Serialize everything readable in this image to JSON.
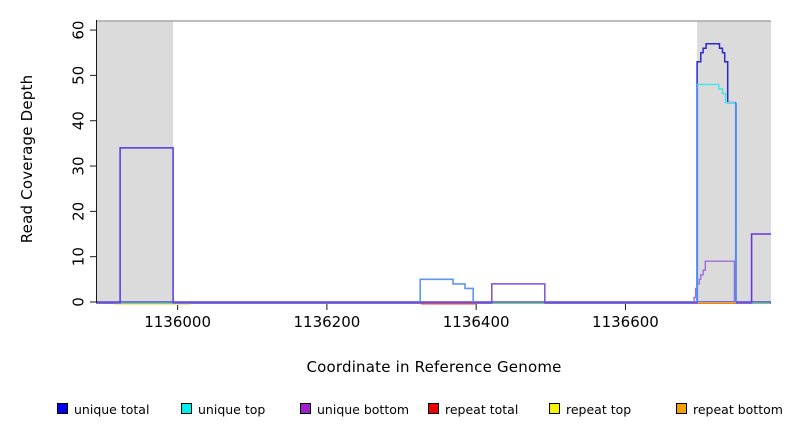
{
  "chart_data": {
    "type": "line",
    "chart_kind": "step-coverage-profile",
    "title": "",
    "xlabel": "Coordinate in Reference Genome",
    "ylabel": "Read Coverage Depth",
    "xlim": [
      1135892,
      1136795
    ],
    "ylim": [
      0,
      62
    ],
    "x_ticks": [
      1136000,
      1136200,
      1136400,
      1136600
    ],
    "y_ticks": [
      0,
      10,
      20,
      30,
      40,
      50,
      60
    ],
    "grid": false,
    "legend_position": "bottom",
    "shaded_regions": [
      {
        "x0": 1135892,
        "x1": 1135994,
        "color": "#dbdbdb"
      },
      {
        "x0": 1136696,
        "x1": 1136795,
        "color": "#dbdbdb"
      }
    ],
    "top_boundary_line": {
      "y": 62,
      "color": "#a8a8a8"
    },
    "axis_color": "#1a1a1a",
    "legend": [
      {
        "label": "unique total",
        "color": "#0000ee"
      },
      {
        "label": "unique top",
        "color": "#00eeee"
      },
      {
        "label": "unique bottom",
        "color": "#a020d0"
      },
      {
        "label": "repeat total",
        "color": "#ee0000"
      },
      {
        "label": "repeat top",
        "color": "#f5f500"
      },
      {
        "label": "repeat bottom",
        "color": "#f5a000"
      }
    ],
    "series": [
      {
        "name": "unique total",
        "color": "#0000ee",
        "step_points": [
          [
            1135892,
            0
          ],
          [
            1135923,
            34
          ],
          [
            1135994,
            0
          ],
          [
            1136325,
            5
          ],
          [
            1136369,
            4
          ],
          [
            1136385,
            3
          ],
          [
            1136396,
            0
          ],
          [
            1136421,
            4
          ],
          [
            1136492,
            0
          ],
          [
            1136696,
            53
          ],
          [
            1136701,
            55
          ],
          [
            1136704,
            56
          ],
          [
            1136708,
            57
          ],
          [
            1136726,
            56
          ],
          [
            1136730,
            55
          ],
          [
            1136733,
            53
          ],
          [
            1136737,
            44
          ],
          [
            1136748,
            0
          ],
          [
            1136769,
            15
          ],
          [
            1136795,
            15
          ]
        ]
      },
      {
        "name": "unique top",
        "color": "#00eeee",
        "step_points": [
          [
            1135892,
            0
          ],
          [
            1136325,
            5
          ],
          [
            1136369,
            4
          ],
          [
            1136385,
            3
          ],
          [
            1136396,
            0
          ],
          [
            1136696,
            48
          ],
          [
            1136725,
            47
          ],
          [
            1136730,
            46
          ],
          [
            1136734,
            44
          ],
          [
            1136748,
            0
          ],
          [
            1136795,
            0
          ]
        ]
      },
      {
        "name": "unique bottom",
        "color": "#a020d0",
        "step_points": [
          [
            1135892,
            0
          ],
          [
            1135923,
            34
          ],
          [
            1135994,
            0
          ],
          [
            1136421,
            4
          ],
          [
            1136492,
            0
          ],
          [
            1136692,
            1
          ],
          [
            1136694,
            3
          ],
          [
            1136696,
            4
          ],
          [
            1136699,
            5
          ],
          [
            1136701,
            6
          ],
          [
            1136704,
            7
          ],
          [
            1136707,
            9
          ],
          [
            1136746,
            0
          ],
          [
            1136769,
            15
          ],
          [
            1136795,
            15
          ]
        ]
      },
      {
        "name": "repeat total",
        "color": "#ee0000",
        "step_points": [
          [
            1135892,
            0
          ],
          [
            1136795,
            0
          ]
        ]
      },
      {
        "name": "repeat top",
        "color": "#f5f500",
        "step_points": [
          [
            1135892,
            0
          ],
          [
            1136795,
            0
          ]
        ]
      },
      {
        "name": "repeat bottom",
        "color": "#f5a000",
        "step_points": [
          [
            1135892,
            0
          ],
          [
            1136795,
            0
          ]
        ]
      }
    ],
    "render_segments": [
      {
        "name": "baseline-repeat-top",
        "color": "#f0eca0",
        "w": 1.4,
        "dy": 2.4,
        "pts": [
          [
            1135915,
            0
          ],
          [
            1136018,
            0
          ]
        ]
      },
      {
        "name": "baseline-unique-bottom",
        "color": "#9668d8",
        "w": 1.3,
        "dy": 1.2,
        "pts": [
          [
            1135892,
            0
          ],
          [
            1136795,
            0
          ]
        ]
      },
      {
        "name": "baseline-unique-total",
        "color": "#4e4ae0",
        "w": 1.4,
        "dy": 0,
        "pts": [
          [
            1135892,
            0
          ],
          [
            1136795,
            0
          ]
        ]
      },
      {
        "name": "baseline-green-left",
        "color": "#80d488",
        "w": 1.3,
        "dy": 1.2,
        "pts": [
          [
            1135924,
            0
          ],
          [
            1135993,
            0
          ]
        ]
      },
      {
        "name": "baseline-green-mid",
        "color": "#80d488",
        "w": 1.3,
        "dy": 1.2,
        "pts": [
          [
            1136422,
            0
          ],
          [
            1136491,
            0
          ]
        ]
      },
      {
        "name": "baseline-green-right",
        "color": "#80d488",
        "w": 1.3,
        "dy": 1.2,
        "pts": [
          [
            1136770,
            0
          ],
          [
            1136794,
            0
          ]
        ]
      },
      {
        "name": "baseline-repeat-total",
        "color": "#e84444",
        "w": 1.3,
        "dy": 1.8,
        "pts": [
          [
            1136326,
            0
          ],
          [
            1136399,
            0
          ]
        ]
      },
      {
        "name": "baseline-repeat-bottom",
        "color": "#ff9e1a",
        "w": 1.6,
        "dy": 0.8,
        "pts": [
          [
            1136697,
            0
          ],
          [
            1136748,
            0
          ]
        ]
      },
      {
        "name": "unique-bottom-staircase",
        "color": "#a06cdc",
        "w": 1.4,
        "dy": 0,
        "pts": [
          [
            1136692,
            0
          ],
          [
            1136692,
            1
          ],
          [
            1136694,
            1
          ],
          [
            1136694,
            3
          ],
          [
            1136696,
            3
          ],
          [
            1136696,
            4
          ],
          [
            1136699,
            4
          ],
          [
            1136699,
            5
          ],
          [
            1136701,
            5
          ],
          [
            1136701,
            6
          ],
          [
            1136704,
            6
          ],
          [
            1136704,
            7
          ],
          [
            1136707,
            7
          ],
          [
            1136707,
            9
          ],
          [
            1136746,
            9
          ],
          [
            1136746,
            0
          ]
        ]
      },
      {
        "name": "right-box-15",
        "color": "#6b36e2",
        "w": 1.6,
        "dy": 0,
        "pts": [
          [
            1136769,
            0
          ],
          [
            1136769,
            15
          ],
          [
            1136795,
            15
          ]
        ]
      },
      {
        "name": "mid-box-4",
        "color": "#7c50d8",
        "w": 1.5,
        "dy": 0,
        "pts": [
          [
            1136421,
            0
          ],
          [
            1136421,
            4
          ],
          [
            1136492,
            4
          ],
          [
            1136492,
            0
          ]
        ]
      },
      {
        "name": "left-box-34",
        "color": "#5436e8",
        "w": 1.5,
        "dy": 0,
        "pts": [
          [
            1135923,
            0
          ],
          [
            1135923,
            34
          ],
          [
            1135994,
            34
          ],
          [
            1135994,
            0
          ]
        ]
      },
      {
        "name": "mid-box-5-steps",
        "color": "#5e96f0",
        "w": 1.6,
        "dy": 0,
        "pts": [
          [
            1136325,
            0
          ],
          [
            1136325,
            5
          ],
          [
            1136369,
            5
          ],
          [
            1136369,
            4
          ],
          [
            1136385,
            4
          ],
          [
            1136385,
            3
          ],
          [
            1136396,
            3
          ],
          [
            1136396,
            0
          ]
        ]
      },
      {
        "name": "peak-total-dome",
        "color": "#2a2acc",
        "w": 1.5,
        "dy": 0,
        "pts": [
          [
            1136696,
            48
          ],
          [
            1136696,
            53
          ],
          [
            1136701,
            53
          ],
          [
            1136701,
            55
          ],
          [
            1136704,
            55
          ],
          [
            1136704,
            56
          ],
          [
            1136708,
            56
          ],
          [
            1136708,
            57
          ],
          [
            1136726,
            57
          ],
          [
            1136726,
            56
          ],
          [
            1136730,
            56
          ],
          [
            1136730,
            55
          ],
          [
            1136733,
            55
          ],
          [
            1136733,
            53
          ],
          [
            1136737,
            53
          ],
          [
            1136737,
            44
          ],
          [
            1136748,
            44
          ]
        ]
      },
      {
        "name": "peak-left-edge",
        "color": "#4e8cf2",
        "w": 2.0,
        "dy": 0,
        "pts": [
          [
            1136696,
            0
          ],
          [
            1136696,
            48
          ]
        ]
      },
      {
        "name": "peak-right-edge",
        "color": "#4e8cf2",
        "w": 2.0,
        "dy": 0,
        "pts": [
          [
            1136748,
            0
          ],
          [
            1136748,
            44
          ]
        ]
      },
      {
        "name": "unique-top-line",
        "color": "#45e6e6",
        "w": 1.4,
        "dy": 0,
        "pts": [
          [
            1136696,
            48
          ],
          [
            1136725,
            48
          ],
          [
            1136725,
            47
          ],
          [
            1136730,
            47
          ],
          [
            1136730,
            46
          ],
          [
            1136734,
            46
          ],
          [
            1136734,
            44
          ],
          [
            1136747,
            44
          ]
        ]
      }
    ]
  }
}
